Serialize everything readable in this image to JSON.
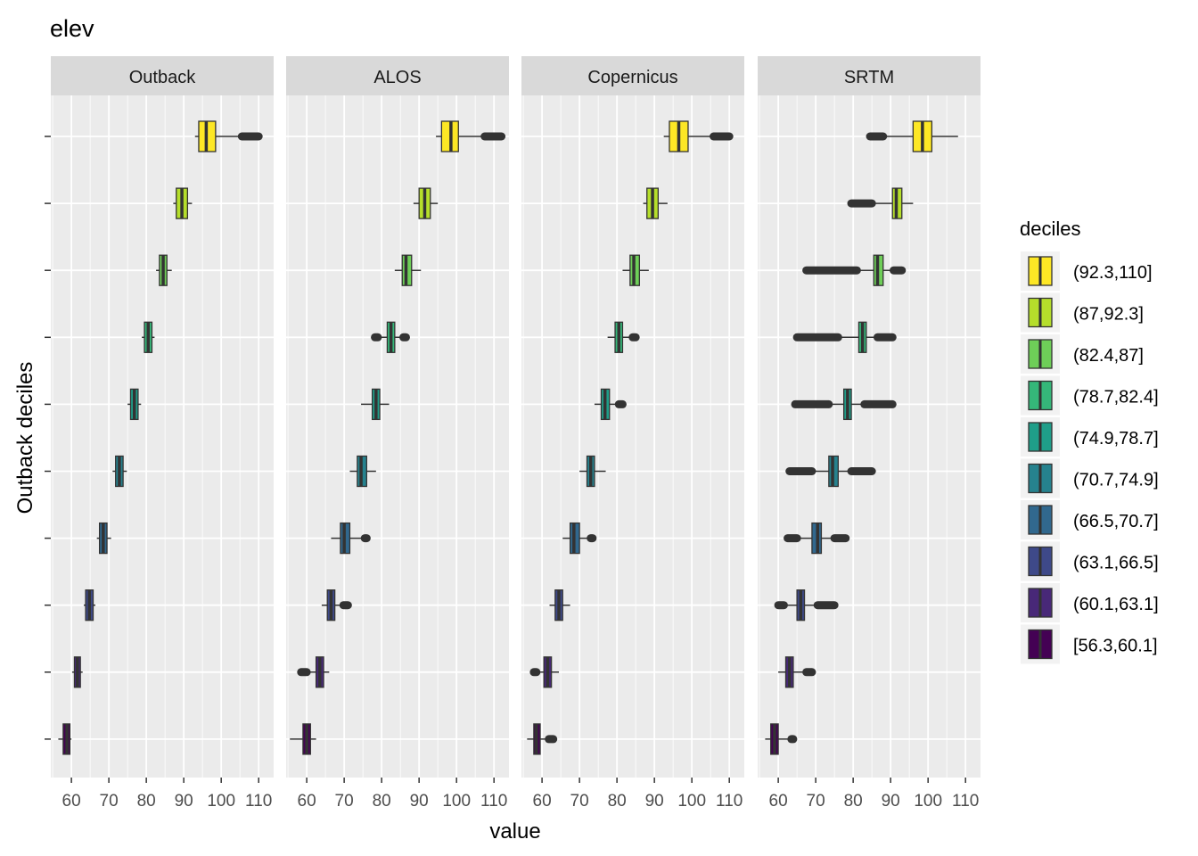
{
  "chart_data": {
    "type": "boxplot",
    "title": "elev",
    "xlabel": "value",
    "ylabel": "Outback deciles",
    "xlim": [
      54.5,
      114
    ],
    "x_ticks": [
      60,
      70,
      80,
      90,
      100,
      110
    ],
    "legend": {
      "title": "deciles",
      "position": "right",
      "entries": [
        {
          "label": "(92.3,110]",
          "color": "#FDE725"
        },
        {
          "label": "(87,92.3]",
          "color": "#B5DE2B"
        },
        {
          "label": "(82.4,87]",
          "color": "#6ECE58"
        },
        {
          "label": "(78.7,82.4]",
          "color": "#35B779"
        },
        {
          "label": "(74.9,78.7]",
          "color": "#1F9E89"
        },
        {
          "label": "(70.7,74.9]",
          "color": "#26828E"
        },
        {
          "label": "(66.5,70.7]",
          "color": "#31688E"
        },
        {
          "label": "(63.1,66.5]",
          "color": "#3E4989"
        },
        {
          "label": "(60.1,63.1]",
          "color": "#482878"
        },
        {
          "label": "[56.3,60.1]",
          "color": "#440154"
        }
      ]
    },
    "panels": [
      {
        "name": "Outback",
        "boxes": [
          {
            "decile": "(92.3,110]",
            "wlo": 93,
            "q1": 94,
            "med": 96,
            "q3": 98.5,
            "whi": 105,
            "outliers": [
              [
                105.5,
                110
              ]
            ]
          },
          {
            "decile": "(87,92.3]",
            "wlo": 87.2,
            "q1": 88,
            "med": 89.5,
            "q3": 91,
            "whi": 92.2,
            "outliers": []
          },
          {
            "decile": "(82.4,87]",
            "wlo": 82.6,
            "q1": 83.5,
            "med": 84.5,
            "q3": 85.5,
            "whi": 86.8,
            "outliers": []
          },
          {
            "decile": "(78.7,82.4]",
            "wlo": 78.8,
            "q1": 79.5,
            "med": 80.5,
            "q3": 81.5,
            "whi": 82.2,
            "outliers": []
          },
          {
            "decile": "(74.9,78.7]",
            "wlo": 75,
            "q1": 75.8,
            "med": 76.8,
            "q3": 77.8,
            "whi": 78.6,
            "outliers": []
          },
          {
            "decile": "(70.7,74.9]",
            "wlo": 71,
            "q1": 71.8,
            "med": 72.8,
            "q3": 73.8,
            "whi": 74.8,
            "outliers": []
          },
          {
            "decile": "(66.5,70.7]",
            "wlo": 66.8,
            "q1": 67.5,
            "med": 68.5,
            "q3": 69.5,
            "whi": 70.6,
            "outliers": []
          },
          {
            "decile": "(63.1,66.5]",
            "wlo": 63.3,
            "q1": 63.8,
            "med": 64.8,
            "q3": 65.8,
            "whi": 66.4,
            "outliers": []
          },
          {
            "decile": "(60.1,63.1]",
            "wlo": 60.2,
            "q1": 60.8,
            "med": 61.6,
            "q3": 62.4,
            "whi": 63,
            "outliers": []
          },
          {
            "decile": "[56.3,60.1]",
            "wlo": 56.5,
            "q1": 57.8,
            "med": 58.8,
            "q3": 59.6,
            "whi": 60,
            "outliers": []
          }
        ]
      },
      {
        "name": "ALOS",
        "boxes": [
          {
            "decile": "(92.3,110]",
            "wlo": 94.5,
            "q1": 96,
            "med": 98.5,
            "q3": 100.5,
            "whi": 107,
            "outliers": [
              [
                107.5,
                112
              ]
            ]
          },
          {
            "decile": "(87,92.3]",
            "wlo": 88.5,
            "q1": 90,
            "med": 91.5,
            "q3": 93,
            "whi": 95,
            "outliers": []
          },
          {
            "decile": "(82.4,87]",
            "wlo": 83.5,
            "q1": 85.5,
            "med": 86.5,
            "q3": 88,
            "whi": 90.5,
            "outliers": []
          },
          {
            "decile": "(78.7,82.4]",
            "wlo": 79.8,
            "q1": 81.5,
            "med": 82.5,
            "q3": 83.5,
            "whi": 85.5,
            "outliers": [
              [
                78.2,
                79
              ],
              [
                85.8,
                86.5
              ]
            ]
          },
          {
            "decile": "(74.9,78.7]",
            "wlo": 74.5,
            "q1": 77.5,
            "med": 78.5,
            "q3": 79.5,
            "whi": 82,
            "outliers": []
          },
          {
            "decile": "(70.7,74.9]",
            "wlo": 71.5,
            "q1": 73.5,
            "med": 74.5,
            "q3": 76,
            "whi": 78.5,
            "outliers": []
          },
          {
            "decile": "(66.5,70.7]",
            "wlo": 66.5,
            "q1": 69,
            "med": 70,
            "q3": 71.5,
            "whi": 75,
            "outliers": [
              [
                75.5,
                76
              ]
            ]
          },
          {
            "decile": "(63.1,66.5]",
            "wlo": 64,
            "q1": 65.5,
            "med": 66.5,
            "q3": 67.5,
            "whi": 69.5,
            "outliers": [
              [
                69.8,
                71
              ]
            ]
          },
          {
            "decile": "(60.1,63.1]",
            "wlo": 60.5,
            "q1": 62.5,
            "med": 63.5,
            "q3": 64.5,
            "whi": 66,
            "outliers": [
              [
                58.5,
                60
              ]
            ]
          },
          {
            "decile": "[56.3,60.1]",
            "wlo": 55.5,
            "q1": 59,
            "med": 60,
            "q3": 61,
            "whi": 62.5,
            "outliers": []
          }
        ]
      },
      {
        "name": "Copernicus",
        "boxes": [
          {
            "decile": "(92.3,110]",
            "wlo": 92.5,
            "q1": 94,
            "med": 96.5,
            "q3": 99,
            "whi": 105.5,
            "outliers": [
              [
                105.8,
                110
              ]
            ]
          },
          {
            "decile": "(87,92.3]",
            "wlo": 87,
            "q1": 88,
            "med": 89.5,
            "q3": 91,
            "whi": 93.5,
            "outliers": []
          },
          {
            "decile": "(82.4,87]",
            "wlo": 81.5,
            "q1": 83.5,
            "med": 84.5,
            "q3": 86,
            "whi": 88.5,
            "outliers": []
          },
          {
            "decile": "(78.7,82.4]",
            "wlo": 77.5,
            "q1": 79.5,
            "med": 80.5,
            "q3": 81.5,
            "whi": 83.5,
            "outliers": [
              [
                84.2,
                85
              ]
            ]
          },
          {
            "decile": "(74.9,78.7]",
            "wlo": 74,
            "q1": 75.8,
            "med": 76.8,
            "q3": 78,
            "whi": 80,
            "outliers": [
              [
                80.5,
                81.5
              ]
            ]
          },
          {
            "decile": "(70.7,74.9]",
            "wlo": 70,
            "q1": 72,
            "med": 73,
            "q3": 74,
            "whi": 77,
            "outliers": []
          },
          {
            "decile": "(66.5,70.7]",
            "wlo": 65.5,
            "q1": 67.5,
            "med": 68.5,
            "q3": 70,
            "whi": 72.5,
            "outliers": [
              [
                73,
                73.5
              ]
            ]
          },
          {
            "decile": "(63.1,66.5]",
            "wlo": 62,
            "q1": 63.5,
            "med": 64.5,
            "q3": 65.5,
            "whi": 67.5,
            "outliers": []
          },
          {
            "decile": "(60.1,63.1]",
            "wlo": 59.5,
            "q1": 60.5,
            "med": 61.5,
            "q3": 62.5,
            "whi": 64.5,
            "outliers": [
              [
                57.8,
                58.5
              ]
            ]
          },
          {
            "decile": "[56.3,60.1]",
            "wlo": 56,
            "q1": 57.8,
            "med": 58.5,
            "q3": 59.5,
            "whi": 61.5,
            "outliers": [
              [
                61.8,
                63
              ]
            ]
          }
        ]
      },
      {
        "name": "SRTM",
        "boxes": [
          {
            "decile": "(92.3,110]",
            "wlo": 88,
            "q1": 96,
            "med": 98.5,
            "q3": 101,
            "whi": 108,
            "outliers": [
              [
                84.5,
                88
              ]
            ]
          },
          {
            "decile": "(87,92.3]",
            "wlo": 85,
            "q1": 90.5,
            "med": 91.5,
            "q3": 93,
            "whi": 96,
            "outliers": [
              [
                79.5,
                85
              ]
            ]
          },
          {
            "decile": "(82.4,87]",
            "wlo": 81,
            "q1": 85.5,
            "med": 86.5,
            "q3": 88,
            "whi": 90.5,
            "outliers": [
              [
                67.5,
                81
              ],
              [
                90.8,
                93
              ]
            ]
          },
          {
            "decile": "(78.7,82.4]",
            "wlo": 76.5,
            "q1": 81.5,
            "med": 82.5,
            "q3": 83.5,
            "whi": 86,
            "outliers": [
              [
                65,
                76
              ],
              [
                86.5,
                90.5
              ]
            ]
          },
          {
            "decile": "(74.9,78.7]",
            "wlo": 74,
            "q1": 77.5,
            "med": 78.5,
            "q3": 79.5,
            "whi": 82.5,
            "outliers": [
              [
                64.5,
                73.5
              ],
              [
                83,
                90.5
              ]
            ]
          },
          {
            "decile": "(70.7,74.9]",
            "wlo": 69.5,
            "q1": 73.5,
            "med": 74.5,
            "q3": 76,
            "whi": 79,
            "outliers": [
              [
                63,
                69
              ],
              [
                79.5,
                85
              ]
            ]
          },
          {
            "decile": "(66.5,70.7]",
            "wlo": 65.5,
            "q1": 69,
            "med": 70.5,
            "q3": 71.5,
            "whi": 74.5,
            "outliers": [
              [
                62.5,
                65
              ],
              [
                75,
                78
              ]
            ]
          },
          {
            "decile": "(63.1,66.5]",
            "wlo": 62,
            "q1": 65,
            "med": 66,
            "q3": 67,
            "whi": 70,
            "outliers": [
              [
                60,
                61.5
              ],
              [
                70.5,
                75
              ]
            ]
          },
          {
            "decile": "(60.1,63.1]",
            "wlo": 60,
            "q1": 62,
            "med": 63,
            "q3": 64,
            "whi": 66.5,
            "outliers": [
              [
                67.5,
                69
              ]
            ]
          },
          {
            "decile": "[56.3,60.1]",
            "wlo": 56.5,
            "q1": 58,
            "med": 59,
            "q3": 60,
            "whi": 62.5,
            "outliers": [
              [
                63.5,
                64
              ]
            ]
          }
        ]
      }
    ]
  }
}
